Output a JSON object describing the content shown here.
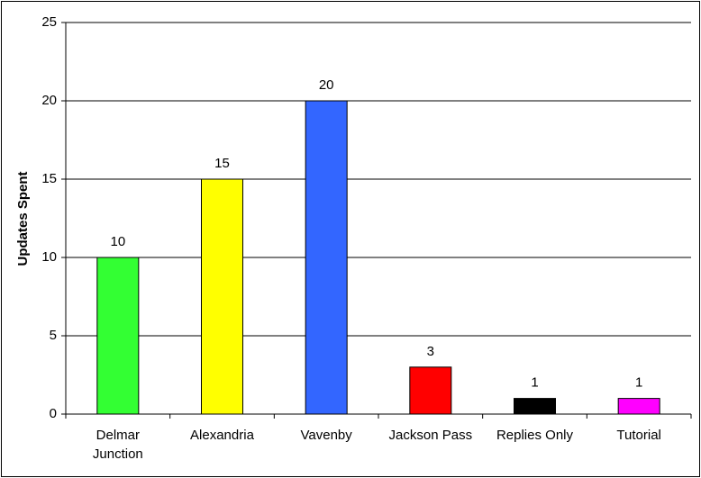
{
  "chart_data": {
    "type": "bar",
    "y_label": "Updates Spent",
    "categories": [
      "Delmar\nJunction",
      "Alexandria",
      "Vavenby",
      "Jackson Pass",
      "Replies Only",
      "Tutorial"
    ],
    "values": [
      10,
      15,
      20,
      3,
      1,
      1
    ],
    "colors": [
      "#33ff33",
      "#ffff00",
      "#3366ff",
      "#ff0000",
      "#000000",
      "#ff00ff"
    ],
    "ylim": [
      0,
      25
    ],
    "yticks": [
      0,
      5,
      10,
      15,
      20,
      25
    ],
    "grid": true
  }
}
